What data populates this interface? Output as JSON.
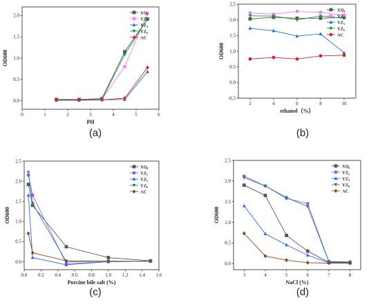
{
  "figure_labels": [
    "(a)",
    "(b)",
    "(c)",
    "(d)"
  ],
  "chart_data": [
    {
      "panel": "(a)",
      "type": "line",
      "xlabel": "PH",
      "ylabel": "OD600",
      "xlim": [
        0,
        6
      ],
      "ylim": [
        -0.2,
        2.2
      ],
      "xticks": [
        0,
        1,
        2,
        3,
        4,
        5,
        6
      ],
      "yticks": [
        0.0,
        0.5,
        1.0,
        1.5,
        2.0
      ],
      "x": [
        1.5,
        2.5,
        3.5,
        4.5,
        5.5
      ],
      "legend_position": "top-right",
      "series": [
        {
          "name": "XQ₁",
          "color": "#555555",
          "marker": "square",
          "values": [
            0.03,
            0.03,
            0.05,
            1.15,
            1.92
          ]
        },
        {
          "name": "YZ₁",
          "color": "#ff77ff",
          "marker": "circle",
          "values": [
            0.01,
            0.02,
            0.03,
            0.8,
            2.05
          ]
        },
        {
          "name": "YZ₃",
          "color": "#1f6fe0",
          "marker": "triangle-up",
          "values": [
            0.01,
            0.01,
            0.02,
            0.03,
            0.68
          ]
        },
        {
          "name": "YZ₆",
          "color": "#129b3e",
          "marker": "triangle-down",
          "values": [
            0.01,
            0.02,
            0.03,
            1.08,
            1.92
          ]
        },
        {
          "name": "AC",
          "color": "#e02020",
          "marker": "diamond",
          "values": [
            0.02,
            0.02,
            0.02,
            0.06,
            0.78
          ]
        }
      ]
    },
    {
      "panel": "(b)",
      "type": "line",
      "xlabel": "ethanol（%）",
      "ylabel": "OD600",
      "xlim": [
        1,
        11
      ],
      "ylim": [
        -0.5,
        2.5
      ],
      "xticks": [
        2,
        4,
        6,
        8,
        10
      ],
      "yticks": [
        -0.5,
        0.0,
        0.5,
        1.0,
        1.5,
        2.0,
        2.5
      ],
      "x": [
        2,
        4,
        6,
        8,
        10
      ],
      "legend_position": "top-right",
      "series": [
        {
          "name": "XQ₁",
          "color": "#555555",
          "marker": "square",
          "values": [
            2.03,
            2.08,
            2.05,
            2.05,
            2.08
          ]
        },
        {
          "name": "YZ₁",
          "color": "#ff77ff",
          "marker": "circle",
          "values": [
            2.22,
            2.18,
            2.27,
            2.24,
            2.15
          ]
        },
        {
          "name": "YZ₃",
          "color": "#1f6fe0",
          "marker": "triangle-up",
          "values": [
            1.73,
            1.65,
            1.48,
            1.55,
            0.95
          ]
        },
        {
          "name": "YZ₆",
          "color": "#129b3e",
          "marker": "triangle-down",
          "values": [
            2.13,
            2.12,
            2.0,
            2.12,
            2.05
          ]
        },
        {
          "name": "AC",
          "color": "#e02020",
          "marker": "circle",
          "values": [
            0.75,
            0.8,
            0.75,
            0.85,
            0.87
          ]
        }
      ]
    },
    {
      "panel": "(c)",
      "type": "line",
      "xlabel": "Porcine bile salt (%)",
      "ylabel": "OD600",
      "xlim": [
        0,
        1.6
      ],
      "ylim": [
        -0.2,
        2.5
      ],
      "xticks": [
        0.0,
        0.2,
        0.4,
        0.6,
        0.8,
        1.0,
        1.2,
        1.4,
        1.6
      ],
      "yticks": [
        0.0,
        0.5,
        1.0,
        1.5,
        2.0,
        2.5
      ],
      "x": [
        0.05,
        0.1,
        0.5,
        1.0,
        1.5
      ],
      "legend_position": "top-right",
      "series": [
        {
          "name": "XQ₁",
          "color": "#555555",
          "marker": "square",
          "values": [
            1.92,
            1.4,
            0.37,
            0.1,
            0.02
          ]
        },
        {
          "name": "YZ₁",
          "color": "#9955ee",
          "marker": "circle",
          "values": [
            2.15,
            1.65,
            -0.05,
            0.0,
            0.01
          ]
        },
        {
          "name": "YZ₃",
          "color": "#3366ee",
          "marker": "triangle-up",
          "values": [
            1.65,
            0.1,
            -0.08,
            0.0,
            0.01
          ]
        },
        {
          "name": "YZ₆",
          "color": "#228888",
          "marker": "triangle-down",
          "values": [
            2.22,
            1.45,
            0.0,
            0.01,
            0.01
          ]
        },
        {
          "name": "AC",
          "color": "#8b4513",
          "marker": "diamond",
          "values": [
            0.7,
            0.22,
            0.02,
            0.01,
            0.01
          ]
        }
      ]
    },
    {
      "panel": "(d)",
      "type": "line",
      "xlabel": "NaCl (%)",
      "ylabel": "OD600",
      "xlim": [
        2.5,
        8.5
      ],
      "ylim": [
        -0.15,
        2.5
      ],
      "xticks": [
        3,
        4,
        5,
        6,
        7,
        8
      ],
      "yticks": [
        0.0,
        0.5,
        1.0,
        1.5,
        2.0,
        2.5
      ],
      "x": [
        3,
        4,
        5,
        6,
        7,
        8
      ],
      "legend_position": "top-right",
      "series": [
        {
          "name": "XQ₁",
          "color": "#555555",
          "marker": "square",
          "values": [
            1.9,
            1.65,
            0.68,
            0.3,
            0.03,
            0.02
          ]
        },
        {
          "name": "YZ₁",
          "color": "#9955ee",
          "marker": "circle",
          "values": [
            2.12,
            1.88,
            1.58,
            1.45,
            0.05,
            0.04
          ]
        },
        {
          "name": "YZ₃",
          "color": "#3366ee",
          "marker": "triangle-up",
          "values": [
            1.4,
            0.72,
            0.45,
            0.2,
            0.02,
            0.01
          ]
        },
        {
          "name": "YZ₆",
          "color": "#228888",
          "marker": "triangle-down",
          "values": [
            2.08,
            1.88,
            1.6,
            1.38,
            0.04,
            0.03
          ]
        },
        {
          "name": "AC",
          "color": "#8b4513",
          "marker": "diamond",
          "values": [
            0.73,
            0.18,
            0.08,
            0.02,
            0.01,
            0.01
          ]
        }
      ]
    }
  ]
}
